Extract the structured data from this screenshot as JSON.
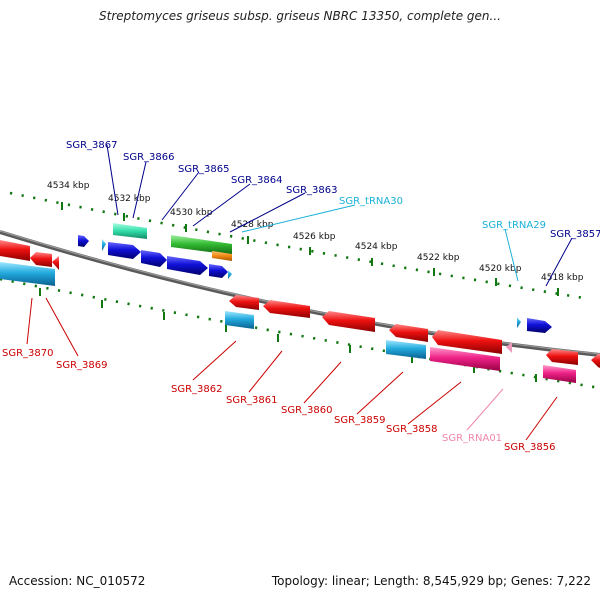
{
  "title": "Streptomyces griseus subsp. griseus NBRC 13350, complete gen...",
  "accession": "Accession: NC_010572",
  "summary": "Topology: linear; Length: 8,545,929 bp; Genes: 7,222",
  "kbp_labels": [
    "4534 kbp",
    "4532 kbp",
    "4530 kbp",
    "4528 kbp",
    "4526 kbp",
    "4524 kbp",
    "4522 kbp",
    "4520 kbp",
    "4518 kbp"
  ],
  "top_labels": [
    {
      "text": "SGR_3867",
      "color": "#00008b"
    },
    {
      "text": "SGR_3866",
      "color": "#00008b"
    },
    {
      "text": "SGR_3865",
      "color": "#00008b"
    },
    {
      "text": "SGR_3864",
      "color": "#00008b"
    },
    {
      "text": "SGR_3863",
      "color": "#00008b"
    },
    {
      "text": "SGR_tRNA30",
      "color": "#1ab0d8"
    },
    {
      "text": "SGR_tRNA29",
      "color": "#1ab0d8"
    },
    {
      "text": "SGR_3857",
      "color": "#00008b"
    }
  ],
  "bottom_labels": [
    {
      "text": "SGR_3870",
      "color": "#cc0000"
    },
    {
      "text": "SGR_3869",
      "color": "#cc0000"
    },
    {
      "text": "SGR_3862",
      "color": "#cc0000"
    },
    {
      "text": "SGR_3861",
      "color": "#cc0000"
    },
    {
      "text": "SGR_3860",
      "color": "#cc0000"
    },
    {
      "text": "SGR_3859",
      "color": "#cc0000"
    },
    {
      "text": "SGR_3858",
      "color": "#cc0000"
    },
    {
      "text": "SGR_RNA01",
      "color": "#ee88aa"
    },
    {
      "text": "SGR_3856",
      "color": "#cc0000"
    }
  ],
  "colors": {
    "cds_forward": "#1010d8",
    "cds_reverse": "#ee1111",
    "pseudo_cyan": "#22aadd",
    "teal": "#33ddaa",
    "green": "#33bb33",
    "orange": "#ee8811",
    "magenta": "#ee2288",
    "backbone": "#777777",
    "ticks": "#117711"
  }
}
